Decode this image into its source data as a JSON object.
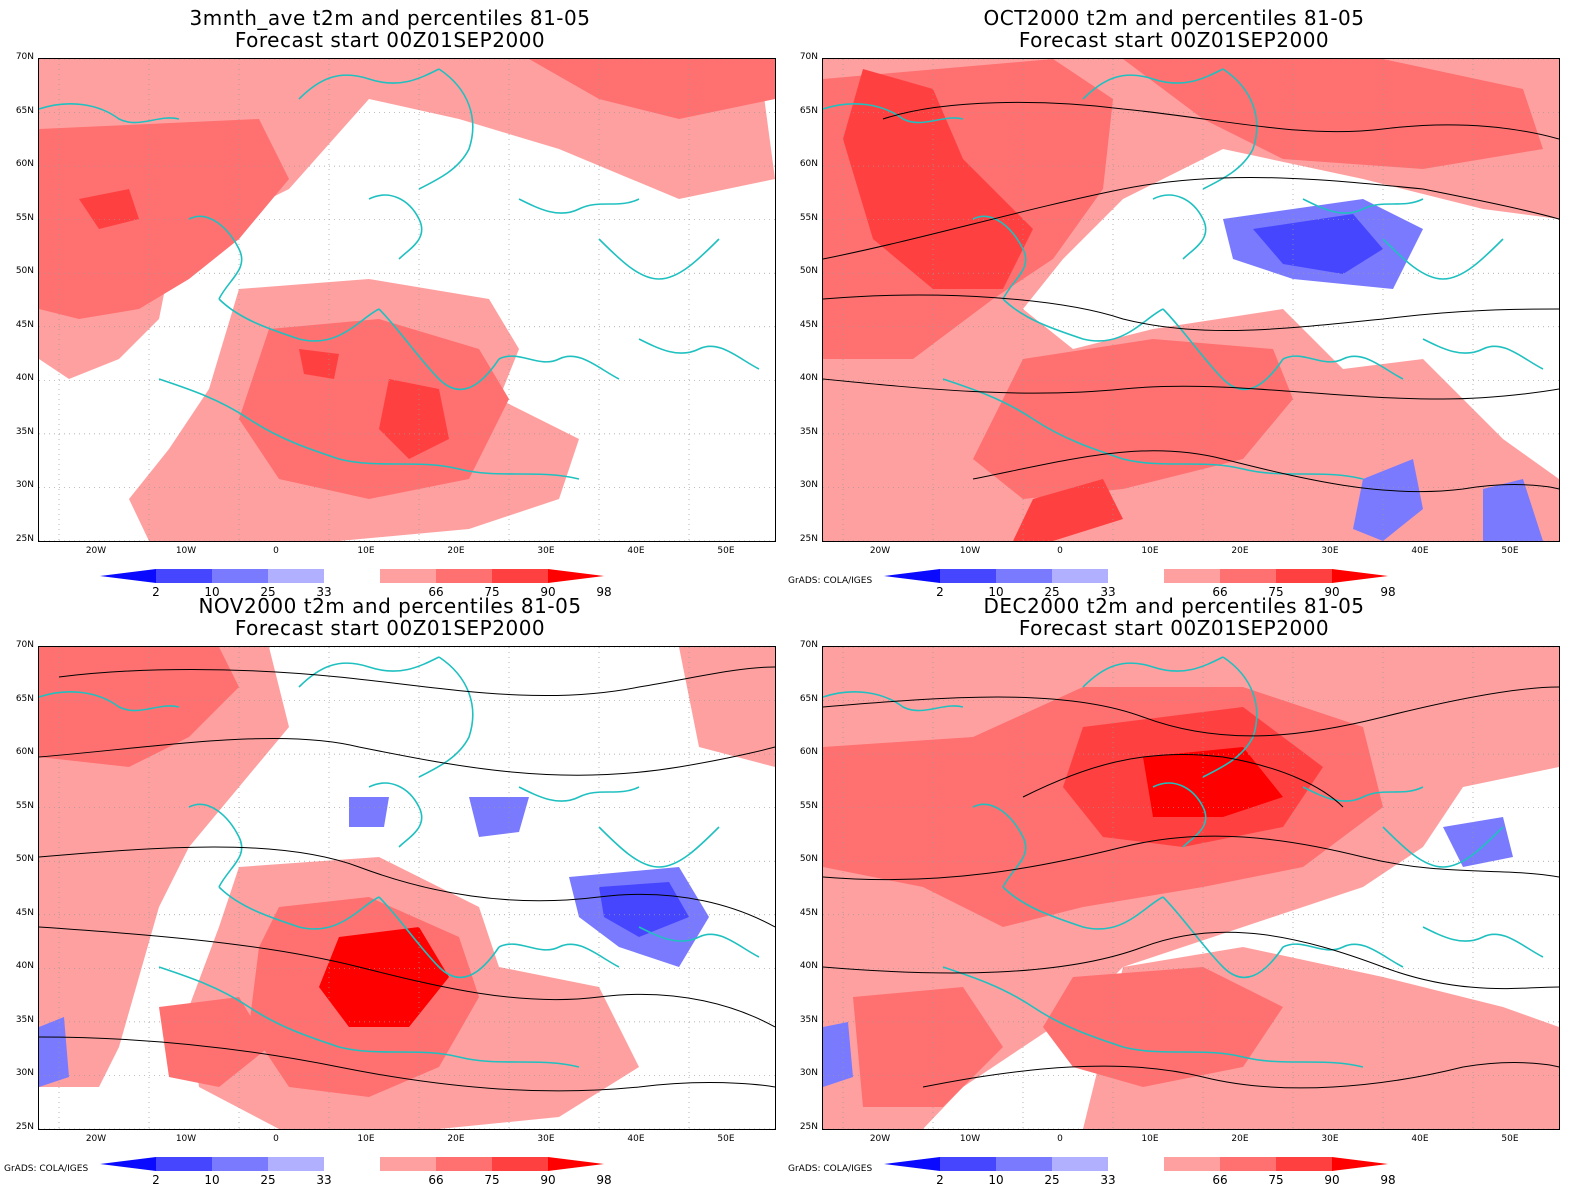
{
  "panels": [
    {
      "title_line1": "3mnth_ave t2m and percentiles 81-05",
      "title_line2": "Forecast start 00Z01SEP2000",
      "credit": ""
    },
    {
      "title_line1": "OCT2000 t2m and percentiles 81-05",
      "title_line2": "Forecast start 00Z01SEP2000",
      "credit": "GrADS: COLA/IGES"
    },
    {
      "title_line1": "NOV2000 t2m and percentiles 81-05",
      "title_line2": "Forecast start 00Z01SEP2000",
      "credit": "GrADS: COLA/IGES"
    },
    {
      "title_line1": "DEC2000 t2m and percentiles 81-05",
      "title_line2": "Forecast start 00Z01SEP2000",
      "credit": "GrADS: COLA/IGES"
    }
  ],
  "axes": {
    "lat_labels": [
      "70N",
      "65N",
      "60N",
      "55N",
      "50N",
      "45N",
      "40N",
      "35N",
      "30N",
      "25N"
    ],
    "lon_labels": [
      "20W",
      "10W",
      "0",
      "10E",
      "20E",
      "30E",
      "40E",
      "50E"
    ]
  },
  "colorbar": {
    "labels": [
      "2",
      "10",
      "25",
      "33",
      "66",
      "75",
      "90",
      "98"
    ],
    "colors": [
      "#0a0aff",
      "#4646ff",
      "#7a7aff",
      "#b0b0ff",
      "#ffffff",
      "#ffa0a0",
      "#ff7070",
      "#ff4040",
      "#ff0000"
    ]
  },
  "colors": {
    "coast": "#20c0c0",
    "contour": "#000000",
    "grid": "#999999"
  }
}
